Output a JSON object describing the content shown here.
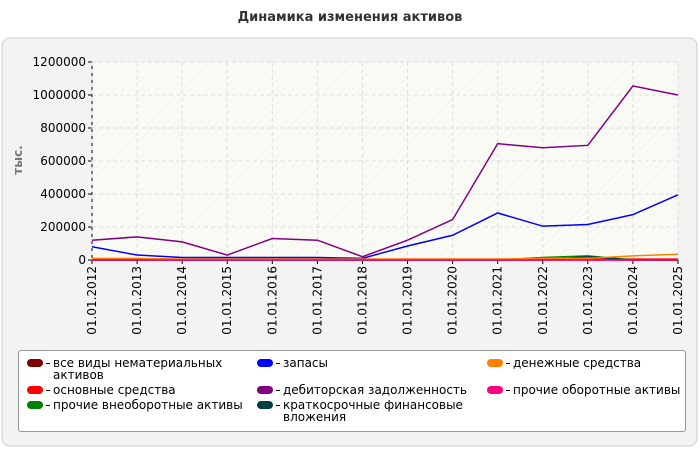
{
  "chart_data": {
    "type": "line",
    "title": "Динамика изменения активов",
    "y_label": "тыс.",
    "categories": [
      "01.01.2012",
      "01.01.2013",
      "01.01.2014",
      "01.01.2015",
      "01.01.2016",
      "01.01.2017",
      "01.01.2018",
      "01.01.2019",
      "01.01.2020",
      "01.01.2021",
      "01.01.2022",
      "01.01.2023",
      "01.01.2024",
      "01.01.2025"
    ],
    "ylim": [
      0,
      1200000
    ],
    "yticks": [
      0,
      200000,
      400000,
      600000,
      800000,
      1000000,
      1200000
    ],
    "grid": true,
    "series": [
      {
        "name": "все виды нематериальных активов",
        "color": "#800000",
        "values": [
          0,
          0,
          0,
          0,
          0,
          0,
          0,
          0,
          0,
          0,
          0,
          0,
          0,
          0
        ]
      },
      {
        "name": "основные средства",
        "color": "#ff0000",
        "values": [
          5000,
          5000,
          5000,
          5000,
          5000,
          5000,
          5000,
          5000,
          5000,
          5000,
          5000,
          5000,
          5000,
          5000
        ]
      },
      {
        "name": "прочие внеоборотные активы",
        "color": "#008000",
        "values": [
          0,
          0,
          0,
          0,
          0,
          0,
          0,
          0,
          0,
          0,
          15000,
          25000,
          0,
          0
        ]
      },
      {
        "name": "запасы",
        "color": "#0000ff",
        "values": [
          80000,
          30000,
          15000,
          15000,
          15000,
          15000,
          10000,
          85000,
          150000,
          285000,
          205000,
          215000,
          275000,
          395000
        ]
      },
      {
        "name": "дебиторская задолженность",
        "color": "#800080",
        "values": [
          120000,
          140000,
          110000,
          30000,
          130000,
          120000,
          20000,
          120000,
          245000,
          705000,
          680000,
          695000,
          1055000,
          1000000
        ]
      },
      {
        "name": "краткосрочные финансовые вложения",
        "color": "#004040",
        "values": [
          0,
          0,
          0,
          0,
          0,
          0,
          0,
          0,
          0,
          0,
          0,
          20000,
          0,
          0
        ]
      },
      {
        "name": "денежные средства",
        "color": "#ff8000",
        "values": [
          10000,
          10000,
          5000,
          5000,
          5000,
          5000,
          5000,
          5000,
          5000,
          5000,
          10000,
          10000,
          25000,
          35000
        ]
      },
      {
        "name": "прочие оборотные активы",
        "color": "#ff0080",
        "values": [
          0,
          0,
          0,
          0,
          0,
          0,
          0,
          0,
          0,
          0,
          0,
          0,
          0,
          0
        ]
      }
    ]
  }
}
